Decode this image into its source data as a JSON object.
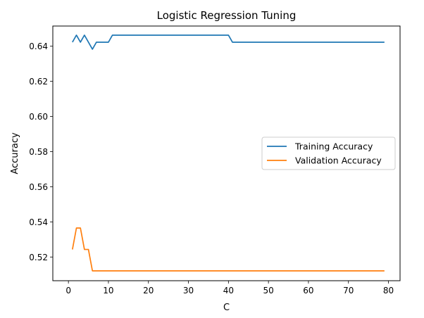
{
  "chart_data": {
    "type": "line",
    "title": "Logistic Regression Tuning",
    "xlabel": "C",
    "ylabel": "Accuracy",
    "xlim": [
      -3.9,
      82.9
    ],
    "ylim": [
      0.5065,
      0.6515
    ],
    "xticks": [
      0,
      10,
      20,
      30,
      40,
      50,
      60,
      70,
      80
    ],
    "yticks": [
      0.52,
      0.54,
      0.56,
      0.58,
      0.6,
      0.62,
      0.64
    ],
    "ytick_labels": [
      "0.52",
      "0.54",
      "0.56",
      "0.58",
      "0.60",
      "0.62",
      "0.64"
    ],
    "grid": false,
    "legend_position": "center-right",
    "series": [
      {
        "name": "Training Accuracy",
        "color": "#1f77b4",
        "points": [
          [
            1,
            0.6423
          ],
          [
            2,
            0.6463
          ],
          [
            3,
            0.6423
          ],
          [
            4,
            0.6463
          ],
          [
            5,
            0.6423
          ],
          [
            6,
            0.6383
          ],
          [
            7,
            0.6423
          ],
          [
            10,
            0.6423
          ],
          [
            11,
            0.6463
          ],
          [
            40,
            0.6463
          ],
          [
            41,
            0.6423
          ],
          [
            79,
            0.6423
          ]
        ]
      },
      {
        "name": "Validation Accuracy",
        "color": "#ff7f0e",
        "points": [
          [
            1,
            0.5243
          ],
          [
            2,
            0.5365
          ],
          [
            3,
            0.5365
          ],
          [
            4,
            0.5243
          ],
          [
            5,
            0.5243
          ],
          [
            6,
            0.5121
          ],
          [
            79,
            0.5121
          ]
        ]
      }
    ]
  }
}
